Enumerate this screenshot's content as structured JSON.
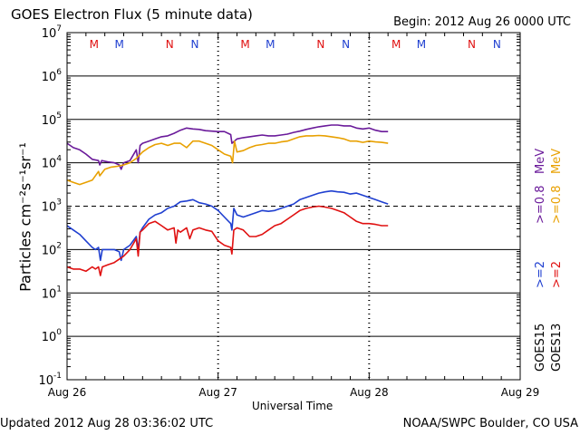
{
  "header": {
    "title": "GOES Electron Flux (5 minute data)",
    "begin": "Begin: 2012 Aug 26 0000 UTC"
  },
  "footer": {
    "updated": "Updated 2012 Aug 28 03:36:02 UTC",
    "credit": "NOAA/SWPC Boulder, CO USA"
  },
  "legend": {
    "goes15": "GOES15",
    "goes13": "GOES13",
    "e2_15": ">=2",
    "e2_13": ">=2",
    "e08_15": ">=0.8",
    "e08_13": ">=0.8",
    "unit_15": "MeV",
    "unit_13": "MeV",
    "colors": {
      "goes15_2": "#1f3fd0",
      "goes13_2": "#e01010",
      "goes15_08": "#6a1a9a",
      "goes13_08": "#e8a000"
    }
  },
  "chart_data": {
    "type": "line",
    "title": "GOES Electron Flux (5 minute data)",
    "xlabel": "Universal Time",
    "ylabel": "Particles cm⁻²s⁻¹sr⁻¹",
    "x_unit": "hours since 2012 Aug 26 0000 UTC",
    "xlim": [
      0,
      72
    ],
    "ylim_log10": [
      -1,
      7
    ],
    "yscale": "log",
    "x_tick_labels": [
      "Aug 26",
      "Aug 27",
      "Aug 28",
      "Aug 29"
    ],
    "x_tick_values": [
      0,
      24,
      48,
      72
    ],
    "y_tick_labels": [
      {
        "base": "10",
        "exp": "-1"
      },
      {
        "base": "10",
        "exp": "0"
      },
      {
        "base": "10",
        "exp": "1"
      },
      {
        "base": "10",
        "exp": "2"
      },
      {
        "base": "10",
        "exp": "3"
      },
      {
        "base": "10",
        "exp": "4"
      },
      {
        "base": "10",
        "exp": "5"
      },
      {
        "base": "10",
        "exp": "6"
      },
      {
        "base": "10",
        "exp": "7"
      }
    ],
    "threshold_log10": 3,
    "day_boundaries_hours": [
      24,
      48
    ],
    "markers": [
      {
        "label": "M",
        "hour": 4.3,
        "color": "#e01010"
      },
      {
        "label": "M",
        "hour": 8.3,
        "color": "#1f3fd0"
      },
      {
        "label": "N",
        "hour": 16.3,
        "color": "#e01010"
      },
      {
        "label": "N",
        "hour": 20.3,
        "color": "#1f3fd0"
      },
      {
        "label": "M",
        "hour": 28.3,
        "color": "#e01010"
      },
      {
        "label": "M",
        "hour": 32.3,
        "color": "#1f3fd0"
      },
      {
        "label": "N",
        "hour": 40.3,
        "color": "#e01010"
      },
      {
        "label": "N",
        "hour": 44.3,
        "color": "#1f3fd0"
      },
      {
        "label": "M",
        "hour": 52.3,
        "color": "#e01010"
      },
      {
        "label": "M",
        "hour": 56.3,
        "color": "#1f3fd0"
      },
      {
        "label": "N",
        "hour": 64.3,
        "color": "#e01010"
      },
      {
        "label": "N",
        "hour": 68.3,
        "color": "#1f3fd0"
      }
    ],
    "series": [
      {
        "name": "GOES15 >=0.8 MeV",
        "color": "#6a1a9a",
        "points_log10": [
          [
            0,
            4.45
          ],
          [
            1,
            4.35
          ],
          [
            2,
            4.3
          ],
          [
            3,
            4.2
          ],
          [
            4,
            4.08
          ],
          [
            5,
            4.05
          ],
          [
            5.2,
            3.95
          ],
          [
            5.5,
            4.05
          ],
          [
            6.5,
            4.02
          ],
          [
            7.5,
            4.0
          ],
          [
            8.3,
            3.95
          ],
          [
            8.6,
            3.85
          ],
          [
            9,
            4.0
          ],
          [
            10,
            4.05
          ],
          [
            11,
            4.3
          ],
          [
            11.3,
            4.0
          ],
          [
            11.6,
            4.4
          ],
          [
            12,
            4.45
          ],
          [
            13,
            4.5
          ],
          [
            14,
            4.55
          ],
          [
            15,
            4.6
          ],
          [
            16,
            4.62
          ],
          [
            17,
            4.68
          ],
          [
            18,
            4.75
          ],
          [
            19,
            4.8
          ],
          [
            20,
            4.78
          ],
          [
            21,
            4.77
          ],
          [
            22,
            4.74
          ],
          [
            23,
            4.73
          ],
          [
            24,
            4.72
          ],
          [
            25,
            4.72
          ],
          [
            26,
            4.65
          ],
          [
            26.2,
            4.45
          ],
          [
            27,
            4.55
          ],
          [
            28,
            4.58
          ],
          [
            29,
            4.6
          ],
          [
            30,
            4.62
          ],
          [
            31,
            4.64
          ],
          [
            32,
            4.62
          ],
          [
            33,
            4.62
          ],
          [
            34,
            4.64
          ],
          [
            35,
            4.66
          ],
          [
            36,
            4.7
          ],
          [
            37,
            4.73
          ],
          [
            38,
            4.77
          ],
          [
            39,
            4.8
          ],
          [
            40,
            4.83
          ],
          [
            41,
            4.85
          ],
          [
            42,
            4.87
          ],
          [
            43,
            4.87
          ],
          [
            44,
            4.85
          ],
          [
            45,
            4.85
          ],
          [
            46,
            4.8
          ],
          [
            47,
            4.78
          ],
          [
            48,
            4.8
          ],
          [
            49,
            4.75
          ],
          [
            50,
            4.72
          ],
          [
            51,
            4.72
          ]
        ]
      },
      {
        "name": "GOES13 >=0.8 MeV",
        "color": "#e8a000",
        "points_log10": [
          [
            0,
            3.6
          ],
          [
            1,
            3.55
          ],
          [
            2,
            3.5
          ],
          [
            3,
            3.55
          ],
          [
            4,
            3.6
          ],
          [
            5,
            3.8
          ],
          [
            5.2,
            3.7
          ],
          [
            6,
            3.85
          ],
          [
            7,
            3.9
          ],
          [
            8,
            3.92
          ],
          [
            9,
            3.95
          ],
          [
            10,
            4.0
          ],
          [
            11,
            4.1
          ],
          [
            12,
            4.25
          ],
          [
            13,
            4.35
          ],
          [
            14,
            4.42
          ],
          [
            15,
            4.45
          ],
          [
            16,
            4.4
          ],
          [
            17,
            4.45
          ],
          [
            18,
            4.45
          ],
          [
            19,
            4.35
          ],
          [
            20,
            4.5
          ],
          [
            21,
            4.5
          ],
          [
            22,
            4.45
          ],
          [
            23,
            4.4
          ],
          [
            24,
            4.3
          ],
          [
            25,
            4.2
          ],
          [
            26,
            4.15
          ],
          [
            26.3,
            4.0
          ],
          [
            26.6,
            4.5
          ],
          [
            27,
            4.25
          ],
          [
            28,
            4.28
          ],
          [
            29,
            4.35
          ],
          [
            30,
            4.4
          ],
          [
            31,
            4.42
          ],
          [
            32,
            4.45
          ],
          [
            33,
            4.45
          ],
          [
            34,
            4.48
          ],
          [
            35,
            4.5
          ],
          [
            36,
            4.55
          ],
          [
            37,
            4.6
          ],
          [
            38,
            4.62
          ],
          [
            39,
            4.62
          ],
          [
            40,
            4.63
          ],
          [
            41,
            4.62
          ],
          [
            42,
            4.6
          ],
          [
            43,
            4.58
          ],
          [
            44,
            4.55
          ],
          [
            45,
            4.5
          ],
          [
            46,
            4.5
          ],
          [
            47,
            4.47
          ],
          [
            48,
            4.5
          ],
          [
            49,
            4.48
          ],
          [
            50,
            4.47
          ],
          [
            51,
            4.45
          ]
        ]
      },
      {
        "name": "GOES15 >=2 MeV",
        "color": "#1f3fd0",
        "points_log10": [
          [
            0,
            2.55
          ],
          [
            1,
            2.45
          ],
          [
            2,
            2.35
          ],
          [
            3,
            2.2
          ],
          [
            4,
            2.05
          ],
          [
            4.5,
            2.0
          ],
          [
            5,
            2.05
          ],
          [
            5.3,
            1.75
          ],
          [
            5.6,
            2.0
          ],
          [
            6.5,
            2.0
          ],
          [
            7.5,
            2.0
          ],
          [
            8.3,
            1.95
          ],
          [
            8.6,
            1.75
          ],
          [
            9,
            2.0
          ],
          [
            10,
            2.1
          ],
          [
            11,
            2.3
          ],
          [
            11.3,
            2.0
          ],
          [
            11.6,
            2.4
          ],
          [
            12,
            2.5
          ],
          [
            13,
            2.7
          ],
          [
            14,
            2.8
          ],
          [
            15,
            2.85
          ],
          [
            16,
            2.95
          ],
          [
            17,
            3.0
          ],
          [
            18,
            3.1
          ],
          [
            19,
            3.12
          ],
          [
            20,
            3.15
          ],
          [
            21,
            3.08
          ],
          [
            22,
            3.05
          ],
          [
            23,
            3.0
          ],
          [
            24,
            2.9
          ],
          [
            25,
            2.75
          ],
          [
            26,
            2.6
          ],
          [
            26.2,
            2.45
          ],
          [
            26.5,
            2.95
          ],
          [
            27,
            2.8
          ],
          [
            28,
            2.75
          ],
          [
            29,
            2.8
          ],
          [
            30,
            2.85
          ],
          [
            31,
            2.9
          ],
          [
            32,
            2.88
          ],
          [
            33,
            2.9
          ],
          [
            34,
            2.95
          ],
          [
            35,
            3.0
          ],
          [
            36,
            3.05
          ],
          [
            37,
            3.15
          ],
          [
            38,
            3.2
          ],
          [
            39,
            3.25
          ],
          [
            40,
            3.3
          ],
          [
            41,
            3.33
          ],
          [
            42,
            3.35
          ],
          [
            43,
            3.33
          ],
          [
            44,
            3.32
          ],
          [
            45,
            3.28
          ],
          [
            46,
            3.3
          ],
          [
            47,
            3.25
          ],
          [
            48,
            3.2
          ],
          [
            49,
            3.15
          ],
          [
            50,
            3.1
          ],
          [
            51,
            3.05
          ]
        ]
      },
      {
        "name": "GOES13 >=2 MeV",
        "color": "#e01010",
        "points_log10": [
          [
            0,
            1.6
          ],
          [
            1,
            1.55
          ],
          [
            2,
            1.55
          ],
          [
            3,
            1.5
          ],
          [
            4,
            1.6
          ],
          [
            4.5,
            1.55
          ],
          [
            5,
            1.6
          ],
          [
            5.3,
            1.4
          ],
          [
            5.6,
            1.6
          ],
          [
            6.5,
            1.65
          ],
          [
            7.5,
            1.7
          ],
          [
            8,
            1.75
          ],
          [
            9,
            1.85
          ],
          [
            10,
            2.0
          ],
          [
            11,
            2.25
          ],
          [
            11.3,
            1.85
          ],
          [
            11.6,
            2.4
          ],
          [
            12,
            2.45
          ],
          [
            13,
            2.6
          ],
          [
            14,
            2.65
          ],
          [
            15,
            2.55
          ],
          [
            16,
            2.45
          ],
          [
            17,
            2.5
          ],
          [
            17.3,
            2.15
          ],
          [
            17.6,
            2.45
          ],
          [
            18,
            2.4
          ],
          [
            19,
            2.5
          ],
          [
            19.5,
            2.25
          ],
          [
            20,
            2.45
          ],
          [
            21,
            2.5
          ],
          [
            22,
            2.45
          ],
          [
            23,
            2.42
          ],
          [
            24,
            2.2
          ],
          [
            25,
            2.1
          ],
          [
            26,
            2.05
          ],
          [
            26.2,
            1.9
          ],
          [
            26.5,
            2.45
          ],
          [
            27,
            2.5
          ],
          [
            28,
            2.45
          ],
          [
            29,
            2.3
          ],
          [
            30,
            2.3
          ],
          [
            31,
            2.35
          ],
          [
            32,
            2.45
          ],
          [
            33,
            2.55
          ],
          [
            34,
            2.6
          ],
          [
            35,
            2.7
          ],
          [
            36,
            2.8
          ],
          [
            37,
            2.9
          ],
          [
            38,
            2.95
          ],
          [
            39,
            2.98
          ],
          [
            40,
            3.0
          ],
          [
            41,
            2.98
          ],
          [
            42,
            2.95
          ],
          [
            43,
            2.9
          ],
          [
            44,
            2.85
          ],
          [
            45,
            2.75
          ],
          [
            46,
            2.65
          ],
          [
            47,
            2.6
          ],
          [
            48,
            2.6
          ],
          [
            49,
            2.58
          ],
          [
            50,
            2.55
          ],
          [
            51,
            2.55
          ]
        ]
      }
    ]
  }
}
